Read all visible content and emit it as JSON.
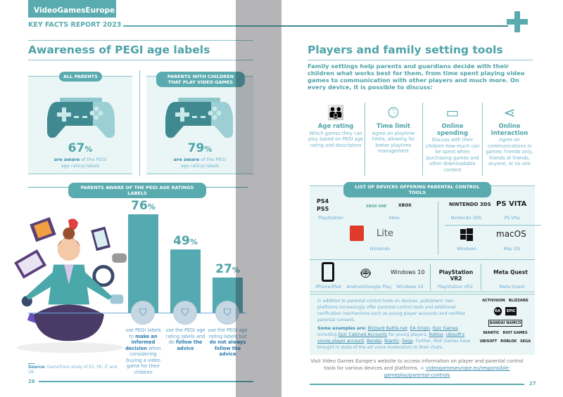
{
  "header": {
    "brand": "VideoGamesEurope",
    "subtitle": "KEY FACTS REPORT 2023"
  },
  "left": {
    "title": "Awareness of PEGI age labels",
    "panels": [
      {
        "pill": "ALL PARENTS",
        "value": "67",
        "unit": "%",
        "bold": "are aware",
        "rest": " of the PEGI age rating labels"
      },
      {
        "pill": "PARENTS WITH CHILDREN THAT PLAY VIDEO GAMES",
        "value": "79",
        "unit": "%",
        "bold": "are aware",
        "rest": " of the PEGI age rating labels"
      }
    ],
    "chart_pill": "PARENTS AWARE OF THE PEGI AGE RATINGS LABELS",
    "bars": [
      {
        "value": 76,
        "label": "76",
        "unit": "%",
        "t1": "use PEGI labels to ",
        "b": "make an informed decision",
        "t2": " when considering buying a video game for their children"
      },
      {
        "value": 49,
        "label": "49",
        "unit": "%",
        "t1": "use the PEGI age rating labels and do ",
        "b": "follow the advice",
        "t2": ""
      },
      {
        "value": 27,
        "label": "27",
        "unit": "%",
        "t1": "use the PEGI age rating labels but ",
        "b": "do not always follow the advice",
        "t2": ""
      }
    ],
    "source_label": "Source:",
    "source": " GameTrack study of ES, FR, IT and UK.",
    "page": "26"
  },
  "right": {
    "title": "Players and family setting tools",
    "intro": "Family settings help parents and guardians decide with their children what works best for them, from time spent playing video games to communication with other players and much more. On every device, it is possible to discuss:",
    "topics": [
      {
        "icon": "family-icon",
        "title": "Age rating",
        "text": "Which games they can play based on PEGI age rating and descriptors"
      },
      {
        "icon": "clock-icon",
        "title": "Time limit",
        "text": "Agree on playtime limits, allowing for better playtime management"
      },
      {
        "icon": "wallet-icon",
        "title": "Online spending",
        "text": "Discuss with their children how much can be spent when purchasing games and other downloadable content"
      },
      {
        "icon": "share-icon",
        "title": "Online interaction",
        "text": "Agree on communications in games: friends only, friends of friends, anyone, or no one"
      }
    ],
    "devices_pill": "LIST OF DEVICES OFFERING PARENTAL CONTROL TOOLS",
    "devices": {
      "playstation": {
        "logos": [
          "PS4",
          "PS5"
        ],
        "label": "PlayStation"
      },
      "xbox": {
        "logos": [
          "XBOX ONE",
          "XBOX"
        ],
        "label": "Xbox"
      },
      "nintendo": {
        "logos": [
          "Lite"
        ],
        "label": "Nintendo"
      },
      "n3ds": {
        "logo": "NINTENDO 3DS",
        "label": "Nintendo 3DS"
      },
      "psvita": {
        "logo": "PS VITA",
        "label": "PS Vita"
      },
      "windows": {
        "label": "Windows"
      },
      "macos": {
        "logo": "macOS",
        "label": "Mac OS"
      },
      "iphone": {
        "label": "iPhone/iPad"
      },
      "android": {
        "label": "Android/Google Play"
      },
      "win10": {
        "logo": "Windows 10",
        "label": "Windows 10"
      },
      "psvr2": {
        "logo": "PlayStation VR2",
        "label": "PlayStation VR2"
      },
      "quest": {
        "logo": "Meta Quest",
        "label": "Meta Quest"
      }
    },
    "publishers_text": "In addition to parental control tools on devices, publishers' own platforms increasingly offer parental control tools and additional verification mechanisms such as young player accounts and verified parental consent.",
    "examples_label": "Some examples are:",
    "links": [
      "Blizzard Battle.net",
      "EA Origin",
      "Epic Games",
      "Epic Cabined Accounts",
      "Roblox",
      "Ubisoft's young player account",
      "Bandai",
      "Niantic",
      "Sega"
    ],
    "connectors": {
      "including": " including ",
      "young": " for young players, ",
      "end": ". Further, Riot Games have brought in state of the art voice moderation to their chats."
    },
    "publisher_logos": [
      "ACTIVISION",
      "BLIZZARD",
      "EA",
      "EPIC",
      "BANDAI NAMCO",
      "NIANTIC",
      "RIOT GAMES",
      "UBISOFT",
      "ROBLOX",
      "SEGA"
    ],
    "visit": "Visit Video Games Europe's website to access information on player and parental control tools for various devices and platforms.",
    "url": "videogameseurope.eu/responsible-gameplay/parental-controls",
    "page": "27"
  },
  "colors": {
    "teal": "#5aabb0",
    "light": "#eaf5f6"
  }
}
